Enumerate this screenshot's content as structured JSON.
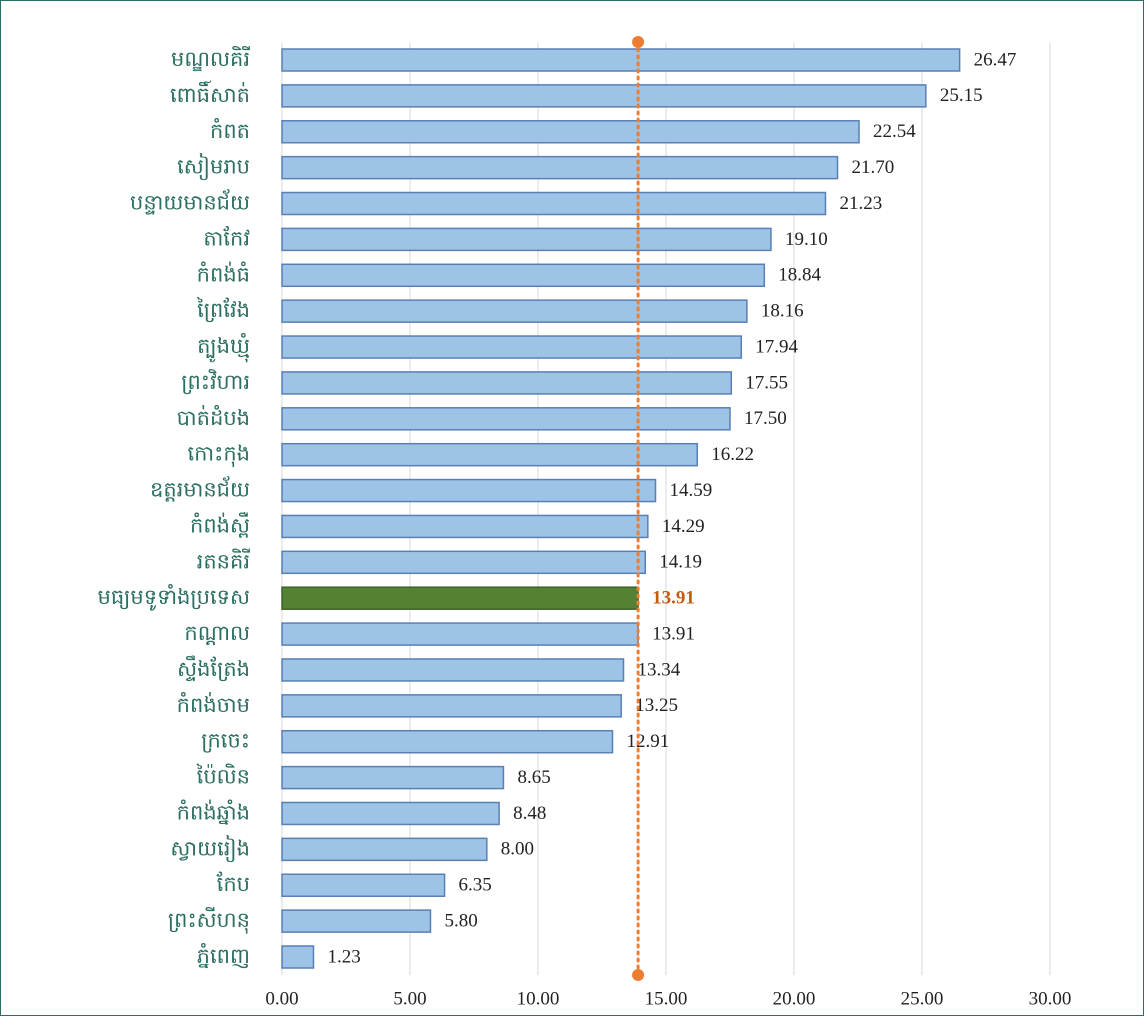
{
  "chart_data": {
    "type": "hbar",
    "categories": [
      "មណ្ឌលគិរី",
      "ពោធិ៍សាត់",
      "កំពត",
      "សៀមរាប",
      "បន្ទាយមានជ័យ",
      "តាកែវ",
      "កំពង់ធំ",
      "ព្រៃវែង",
      "ត្បូងឃ្មុំ",
      "ព្រះវិហារ",
      "បាត់ដំបង",
      "កោះកុង",
      "ឧត្តរមានជ័យ",
      "កំពង់ស្ពឺ",
      "រតនគិរី",
      "មធ្យមទូទាំងប្រទេស",
      "កណ្ដាល",
      "ស្ទឹងត្រែង",
      "កំពង់ចាម",
      "ក្រចេះ",
      "ប៉ៃលិន",
      "កំពង់ឆ្នាំង",
      "ស្វាយរៀង",
      "កែប",
      "ព្រះសីហនុ",
      "ភ្នំពេញ"
    ],
    "values": [
      26.47,
      25.15,
      22.54,
      21.7,
      21.23,
      19.1,
      18.84,
      18.16,
      17.94,
      17.55,
      17.5,
      16.22,
      14.59,
      14.29,
      14.19,
      13.91,
      13.91,
      13.34,
      13.25,
      12.91,
      8.65,
      8.48,
      8.0,
      6.35,
      5.8,
      1.23
    ],
    "value_labels": [
      "26.47",
      "25.15",
      "22.54",
      "21.70",
      "21.23",
      "19.10",
      "18.84",
      "18.16",
      "17.94",
      "17.55",
      "17.50",
      "16.22",
      "14.59",
      "14.29",
      "14.19",
      "13.91",
      "13.91",
      "13.34",
      "13.25",
      "12.91",
      "8.65",
      "8.48",
      "8.00",
      "6.35",
      "5.80",
      "1.23"
    ],
    "colors": [
      "#9dc3e6",
      "#9dc3e6",
      "#9dc3e6",
      "#9dc3e6",
      "#9dc3e6",
      "#9dc3e6",
      "#9dc3e6",
      "#9dc3e6",
      "#9dc3e6",
      "#9dc3e6",
      "#9dc3e6",
      "#9dc3e6",
      "#9dc3e6",
      "#9dc3e6",
      "#9dc3e6",
      "#548235",
      "#9dc3e6",
      "#9dc3e6",
      "#9dc3e6",
      "#9dc3e6",
      "#9dc3e6",
      "#9dc3e6",
      "#9dc3e6",
      "#9dc3e6",
      "#9dc3e6",
      "#9dc3e6"
    ],
    "value_label_colors": [
      "#222",
      "#222",
      "#222",
      "#222",
      "#222",
      "#222",
      "#222",
      "#222",
      "#222",
      "#222",
      "#222",
      "#222",
      "#222",
      "#222",
      "#222",
      "#c55a11",
      "#222",
      "#222",
      "#222",
      "#222",
      "#222",
      "#222",
      "#222",
      "#222",
      "#222",
      "#222"
    ],
    "xlim": [
      0,
      30
    ],
    "xticks": [
      {
        "value": 0,
        "label": "0.00"
      },
      {
        "value": 5,
        "label": "5.00"
      },
      {
        "value": 10,
        "label": "10.00"
      },
      {
        "value": 15,
        "label": "15.00"
      },
      {
        "value": 20,
        "label": "20.00"
      },
      {
        "value": 25,
        "label": "25.00"
      },
      {
        "value": 30,
        "label": "30.00"
      }
    ],
    "grid": true,
    "reference_line": {
      "value": 13.91,
      "color": "#ed7d31"
    }
  }
}
